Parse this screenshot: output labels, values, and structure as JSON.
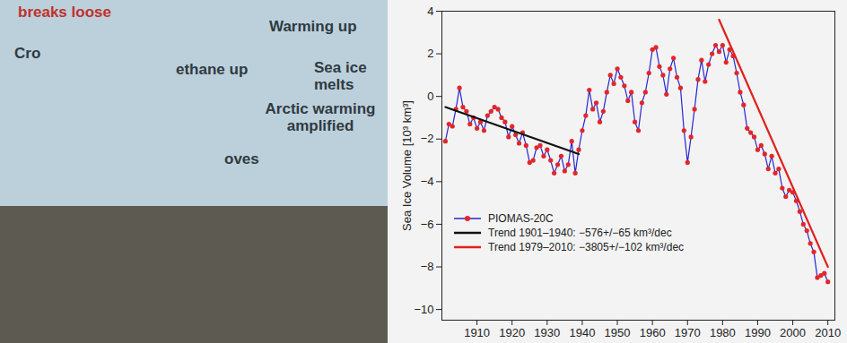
{
  "poster": {
    "texts": [
      "breaks loose",
      "Warming up",
      "Cro",
      "ethane up",
      "Sea ice melts",
      "Arctic warming amplified",
      "oves"
    ]
  },
  "chart_data": {
    "type": "line",
    "y_label": "Sea Ice Volume [10³ km³]",
    "xlim": [
      1900,
      2012
    ],
    "xticks": [
      1910,
      1920,
      1930,
      1940,
      1950,
      1960,
      1970,
      1980,
      1990,
      2000,
      2010
    ],
    "ylim": [
      -10.5,
      4
    ],
    "yticks": [
      -10,
      -8,
      -6,
      -4,
      -2,
      0,
      2,
      4
    ],
    "grid": false,
    "legend": "lower-left",
    "x": [
      1901,
      1902,
      1903,
      1904,
      1905,
      1906,
      1907,
      1908,
      1909,
      1910,
      1911,
      1912,
      1913,
      1914,
      1915,
      1916,
      1917,
      1918,
      1919,
      1920,
      1921,
      1922,
      1923,
      1924,
      1925,
      1926,
      1927,
      1928,
      1929,
      1930,
      1931,
      1932,
      1933,
      1934,
      1935,
      1936,
      1937,
      1938,
      1939,
      1940,
      1941,
      1942,
      1943,
      1944,
      1945,
      1946,
      1947,
      1948,
      1949,
      1950,
      1951,
      1952,
      1953,
      1954,
      1955,
      1956,
      1957,
      1958,
      1959,
      1960,
      1961,
      1962,
      1963,
      1964,
      1965,
      1966,
      1967,
      1968,
      1969,
      1970,
      1971,
      1972,
      1973,
      1974,
      1975,
      1976,
      1977,
      1978,
      1979,
      1980,
      1981,
      1982,
      1983,
      1984,
      1985,
      1986,
      1987,
      1988,
      1989,
      1990,
      1991,
      1992,
      1993,
      1994,
      1995,
      1996,
      1997,
      1998,
      1999,
      2000,
      2001,
      2002,
      2003,
      2004,
      2005,
      2006,
      2007,
      2008,
      2009,
      2010
    ],
    "series": [
      {
        "name": "PIOMAS-20C",
        "color": "#2626d0",
        "marker": "circle",
        "values": [
          -2.1,
          -1.3,
          -1.4,
          -0.6,
          0.4,
          -0.5,
          -0.7,
          -1.3,
          -1.0,
          -1.5,
          -1.2,
          -1.6,
          -0.9,
          -0.7,
          -0.5,
          -0.6,
          -1.0,
          -1.2,
          -1.9,
          -1.4,
          -1.8,
          -2.2,
          -1.7,
          -2.3,
          -3.1,
          -3.0,
          -2.4,
          -2.3,
          -2.8,
          -2.5,
          -3.0,
          -3.6,
          -3.2,
          -2.8,
          -3.5,
          -3.2,
          -2.1,
          -3.6,
          -2.5,
          -1.6,
          -0.9,
          0.3,
          -0.6,
          -0.3,
          -1.2,
          -0.7,
          0.2,
          1.0,
          0.6,
          1.3,
          0.9,
          0.5,
          -0.2,
          0.2,
          -1.2,
          -1.6,
          -0.3,
          0.2,
          1.1,
          2.2,
          2.3,
          1.4,
          1.0,
          0.1,
          1.3,
          1.8,
          0.9,
          0.4,
          -1.6,
          -3.1,
          -1.9,
          -0.6,
          0.8,
          1.7,
          0.7,
          1.5,
          2.0,
          2.4,
          2.1,
          2.4,
          1.6,
          2.2,
          1.9,
          1.1,
          0.2,
          -0.4,
          -1.5,
          -1.7,
          -1.9,
          -2.5,
          -2.3,
          -2.7,
          -3.4,
          -2.8,
          -3.6,
          -3.4,
          -4.3,
          -4.7,
          -4.4,
          -4.5,
          -4.9,
          -5.4,
          -6.0,
          -6.3,
          -6.9,
          -7.3,
          -8.5,
          -8.4,
          -8.3,
          -8.7
        ]
      },
      {
        "name": "Trend 1901–1940:  −576+/−65 km³/dec",
        "color": "#111111",
        "x": [
          1901,
          1939
        ],
        "values": [
          -0.5,
          -2.7
        ]
      },
      {
        "name": "Trend 1979–2010: −3805+/−102 km³/dec",
        "color": "#e0201e",
        "x": [
          1979,
          2010
        ],
        "values": [
          3.6,
          -8.0
        ]
      }
    ]
  }
}
